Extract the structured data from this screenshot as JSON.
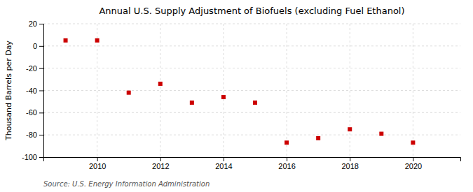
{
  "chart_data": {
    "type": "scatter",
    "title": "Annual U.S. Supply Adjustment of Biofuels (excluding Fuel Ethanol)",
    "ylabel": "Thousand Barrels per Day",
    "source": "Source: U.S. Energy Information Administration",
    "x": [
      2009,
      2010,
      2011,
      2012,
      2013,
      2014,
      2015,
      2016,
      2017,
      2018,
      2019,
      2020
    ],
    "values": [
      5,
      5,
      -42,
      -34,
      -51,
      -46,
      -51,
      -87,
      -83,
      -75,
      -79,
      -87
    ],
    "color": "#cc0000",
    "marker": "square",
    "xlim": [
      2008.3,
      2021.5
    ],
    "ylim": [
      -100,
      20
    ],
    "xticks": [
      2010,
      2012,
      2014,
      2016,
      2018,
      2020
    ],
    "yticks": [
      -100,
      -80,
      -60,
      -40,
      -20,
      0,
      20
    ],
    "grid": true
  }
}
